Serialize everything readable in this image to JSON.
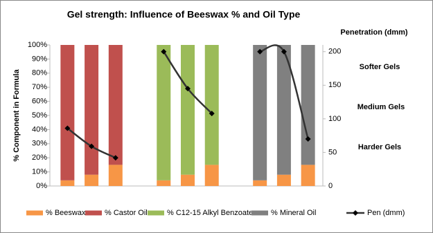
{
  "chart_data": {
    "type": "bar",
    "stacked": true,
    "title": "Gel strength: Influence of Beeswax % and Oil Type",
    "y_label": "% Component in Formula",
    "y2_label": "Penetration (dmm)",
    "annotations": [
      "Softer Gels",
      "Medium Gels",
      "Harder Gels"
    ],
    "categories": [
      null,
      null,
      null,
      null,
      null,
      null,
      null,
      null,
      null,
      null,
      null
    ],
    "series": [
      {
        "name": "% Beeswax",
        "color": "#f79646",
        "values": [
          4,
          8,
          15,
          null,
          4,
          8,
          15,
          null,
          4,
          8,
          15
        ]
      },
      {
        "name": "% Castor Oil",
        "color": "#c0504d",
        "values": [
          96,
          92,
          85,
          null,
          null,
          null,
          null,
          null,
          null,
          null,
          null
        ]
      },
      {
        "name": "% C12-15 Alkyl Benzoate",
        "color": "#9bbb59",
        "values": [
          null,
          null,
          null,
          null,
          96,
          92,
          85,
          null,
          null,
          null,
          null
        ]
      },
      {
        "name": "% Mineral Oil",
        "color": "#808080",
        "values": [
          null,
          null,
          null,
          null,
          null,
          null,
          null,
          null,
          96,
          92,
          85
        ]
      },
      {
        "name": "Pen (dmm)",
        "type": "line",
        "axis": "y2",
        "color": "#333333",
        "marker_color": "#000000",
        "smooth": true,
        "values": [
          86,
          59,
          42,
          null,
          200,
          145,
          108,
          null,
          200,
          200,
          70
        ]
      }
    ],
    "ylim": [
      0,
      100
    ],
    "yticks": [
      {
        "value": 0,
        "label": "0%"
      },
      {
        "value": 10,
        "label": "10%"
      },
      {
        "value": 20,
        "label": "20%"
      },
      {
        "value": 30,
        "label": "30%"
      },
      {
        "value": 40,
        "label": "40%"
      },
      {
        "value": 50,
        "label": "50%"
      },
      {
        "value": 60,
        "label": "60%"
      },
      {
        "value": 70,
        "label": "70%"
      },
      {
        "value": 80,
        "label": "80%"
      },
      {
        "value": 90,
        "label": "90%"
      },
      {
        "value": 100,
        "label": "100%"
      }
    ],
    "y2lim": [
      0,
      210
    ],
    "y2ticks": [
      0,
      50,
      100,
      150,
      200
    ],
    "legend": "bottom"
  }
}
